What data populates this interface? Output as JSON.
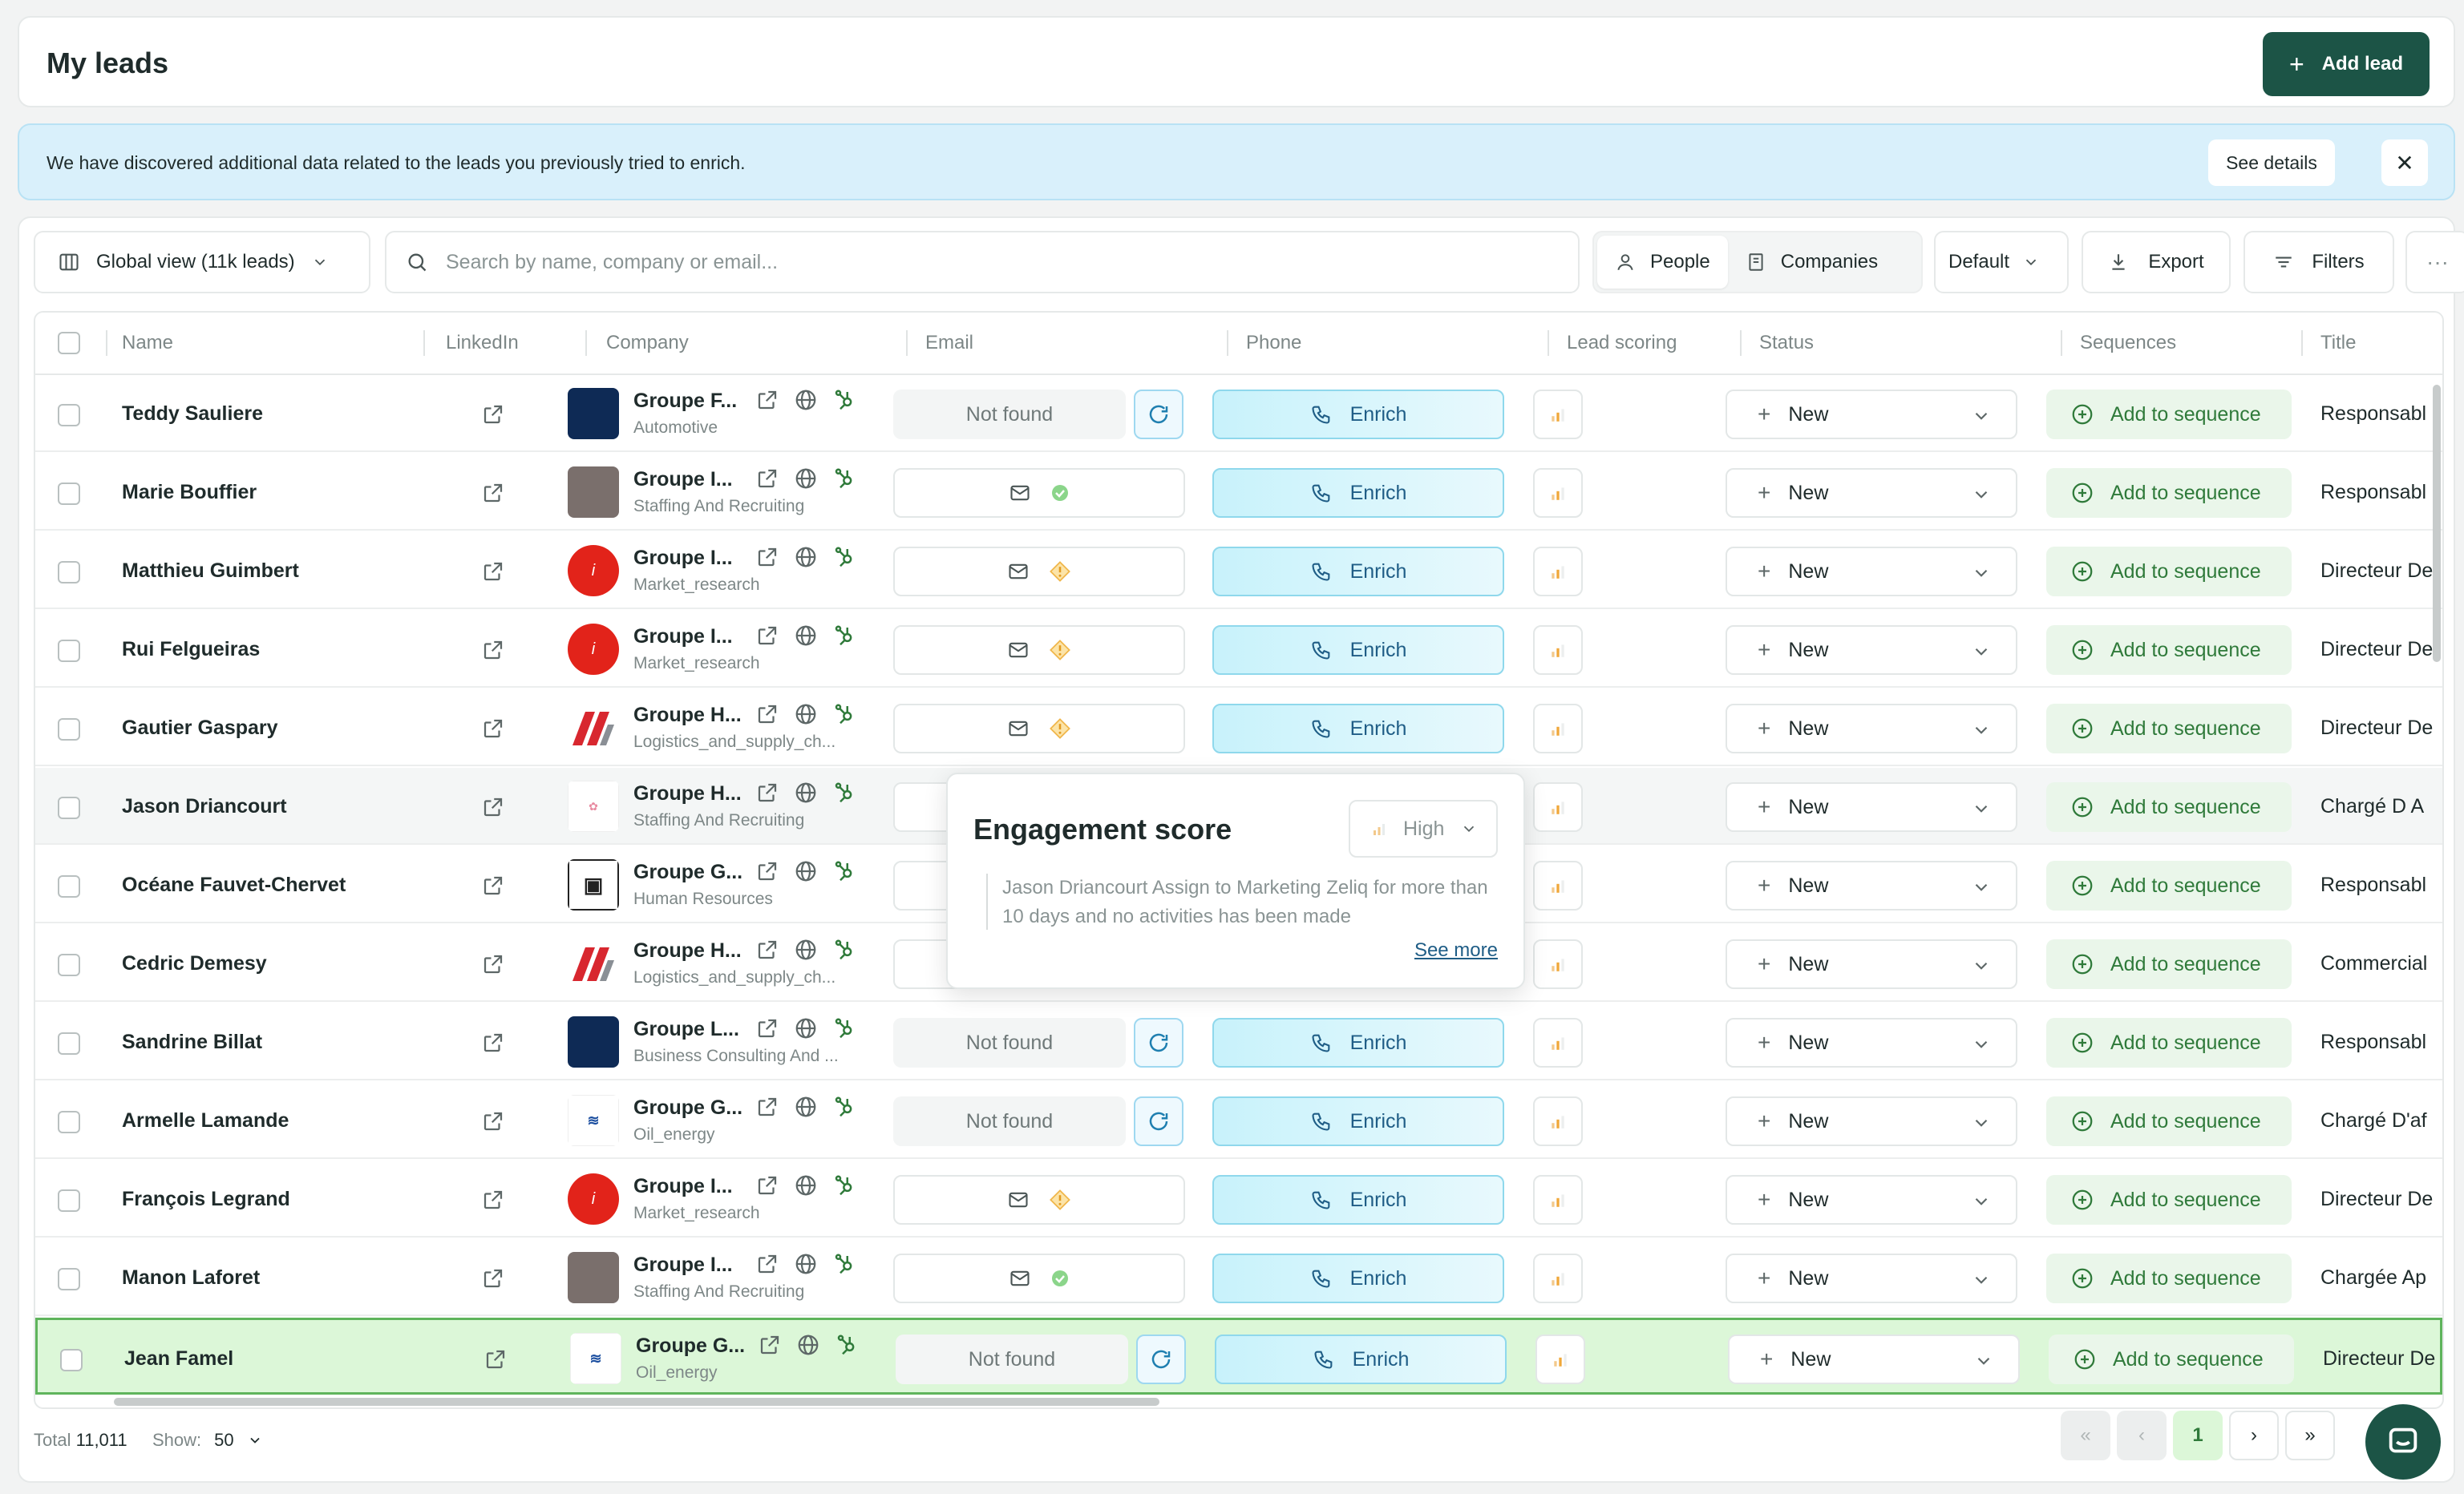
{
  "header": {
    "title": "My leads",
    "add_lead_label": "Add lead"
  },
  "banner": {
    "text": "We have discovered additional data related to the leads you previously tried to enrich.",
    "see_details_label": "See details"
  },
  "toolbar": {
    "view_label": "Global view (11k leads)",
    "search_placeholder": "Search by name, company or email...",
    "people_label": "People",
    "companies_label": "Companies",
    "default_label": "Default",
    "export_label": "Export",
    "filters_label": "Filters",
    "more_label": "···"
  },
  "columns": [
    "Name",
    "LinkedIn",
    "Company",
    "Email",
    "Phone",
    "Lead scoring",
    "Status",
    "Sequences",
    "Title"
  ],
  "rows": [
    {
      "name": "Teddy Sauliere",
      "company": "Groupe F...",
      "industry": "Automotive",
      "logo": "navy",
      "email": "not_found",
      "phone": "Enrich",
      "status": "New",
      "sequence": "Add to sequence",
      "title": "Responsabl"
    },
    {
      "name": "Marie Bouffier",
      "company": "Groupe I...",
      "industry": "Staffing And Recruiting",
      "logo": "brown",
      "email": "verified",
      "phone": "Enrich",
      "status": "New",
      "sequence": "Add to sequence",
      "title": "Responsabl"
    },
    {
      "name": "Matthieu Guimbert",
      "company": "Groupe I...",
      "industry": "Market_research",
      "logo": "ifop",
      "email": "warning",
      "phone": "Enrich",
      "status": "New",
      "sequence": "Add to sequence",
      "title": "Directeur De"
    },
    {
      "name": "Rui Felgueiras",
      "company": "Groupe I...",
      "industry": "Market_research",
      "logo": "ifop",
      "email": "warning",
      "phone": "Enrich",
      "status": "New",
      "sequence": "Add to sequence",
      "title": "Directeur De"
    },
    {
      "name": "Gautier Gaspary",
      "company": "Groupe H...",
      "industry": "Logistics_and_supply_ch...",
      "logo": "redstripes",
      "email": "warning",
      "phone": "Enrich",
      "status": "New",
      "sequence": "Add to sequence",
      "title": "Directeur De"
    },
    {
      "name": "Jason Driancourt",
      "company": "Groupe H...",
      "industry": "Staffing And Recruiting",
      "logo": "happy",
      "email": "hidden",
      "phone": "",
      "status": "New",
      "sequence": "Add to sequence",
      "title": "Chargé D A"
    },
    {
      "name": "Océane Fauvet-Chervet",
      "company": "Groupe G...",
      "industry": "Human Resources",
      "logo": "gr",
      "email": "hidden",
      "phone": "",
      "status": "New",
      "sequence": "Add to sequence",
      "title": "Responsabl"
    },
    {
      "name": "Cedric Demesy",
      "company": "Groupe H...",
      "industry": "Logistics_and_supply_ch...",
      "logo": "redstripes",
      "email": "hidden",
      "phone": "",
      "status": "New",
      "sequence": "Add to sequence",
      "title": "Commercial"
    },
    {
      "name": "Sandrine Billat",
      "company": "Groupe L...",
      "industry": "Business Consulting And ...",
      "logo": "navy",
      "email": "not_found",
      "phone": "Enrich",
      "status": "New",
      "sequence": "Add to sequence",
      "title": "Responsabl"
    },
    {
      "name": "Armelle Lamande",
      "company": "Groupe G...",
      "industry": "Oil_energy",
      "logo": "geo",
      "email": "not_found",
      "phone": "Enrich",
      "status": "New",
      "sequence": "Add to sequence",
      "title": "Chargé D'af"
    },
    {
      "name": "François Legrand",
      "company": "Groupe I...",
      "industry": "Market_research",
      "logo": "ifop",
      "email": "warning",
      "phone": "Enrich",
      "status": "New",
      "sequence": "Add to sequence",
      "title": "Directeur De"
    },
    {
      "name": "Manon Laforet",
      "company": "Groupe I...",
      "industry": "Staffing And Recruiting",
      "logo": "brown",
      "email": "verified",
      "phone": "Enrich",
      "status": "New",
      "sequence": "Add to sequence",
      "title": "Chargée Ap"
    },
    {
      "name": "Jean Famel",
      "company": "Groupe G...",
      "industry": "Oil_energy",
      "logo": "geo",
      "email": "not_found",
      "phone": "Enrich",
      "status": "New",
      "sequence": "Add to sequence",
      "title": "Directeur De"
    }
  ],
  "email_not_found_label": "Not found",
  "popover": {
    "title": "Engagement score",
    "level": "High",
    "message": "Jason Driancourt Assign to Marketing Zeliq for more than 10 days and no activities has been made",
    "see_more_label": "See more"
  },
  "footer": {
    "total_label": "Total",
    "total_value": "11,011",
    "show_label": "Show:",
    "show_value": "50",
    "current_page": "1"
  },
  "colors": {
    "brand": "#1c5446",
    "banner_bg": "#d9f0fb",
    "selected_row": "#dcf7d8",
    "sequence_green": "#2f7a3a",
    "enrich_blue": "#1f5d86"
  }
}
